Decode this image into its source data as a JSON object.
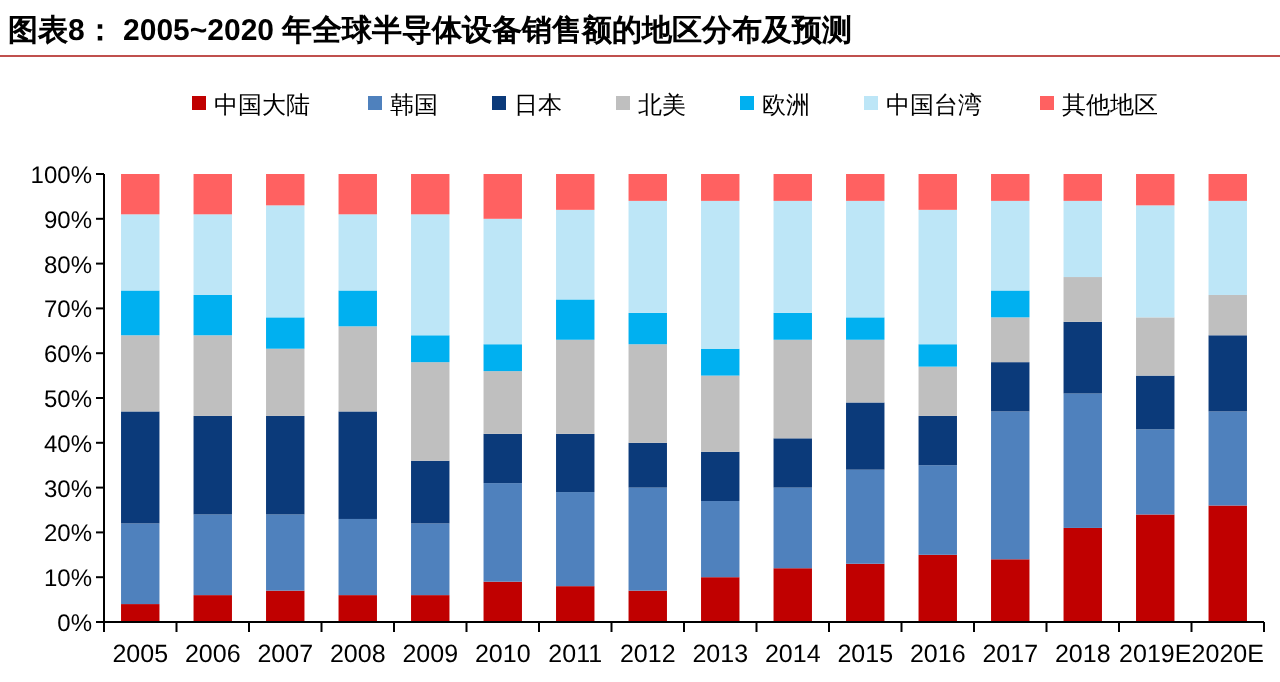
{
  "chart_data": {
    "type": "bar",
    "stacked": true,
    "title": "图表8：  2005~2020 年全球半导体设备销售额的地区分布及预测",
    "categories": [
      "2005",
      "2006",
      "2007",
      "2008",
      "2009",
      "2010",
      "2011",
      "2012",
      "2013",
      "2014",
      "2015",
      "2016",
      "2017",
      "2018",
      "2019E",
      "2020E"
    ],
    "series": [
      {
        "name": "中国大陆",
        "color": "#c00000",
        "values": [
          4,
          6,
          7,
          6,
          6,
          9,
          8,
          7,
          10,
          12,
          13,
          15,
          14,
          21,
          24,
          26
        ]
      },
      {
        "name": "韩国",
        "color": "#4f81bd",
        "values": [
          18,
          18,
          17,
          17,
          16,
          22,
          21,
          23,
          17,
          18,
          21,
          20,
          33,
          30,
          19,
          21
        ]
      },
      {
        "name": "日本",
        "color": "#0b3a7a",
        "values": [
          25,
          22,
          22,
          24,
          14,
          11,
          13,
          10,
          11,
          11,
          15,
          11,
          11,
          16,
          12,
          17
        ]
      },
      {
        "name": "北美",
        "color": "#bfbfbf",
        "values": [
          17,
          18,
          15,
          19,
          22,
          14,
          21,
          22,
          17,
          22,
          14,
          11,
          10,
          10,
          13,
          9
        ]
      },
      {
        "name": "欧洲",
        "color": "#00b0f0",
        "values": [
          10,
          9,
          7,
          8,
          6,
          6,
          9,
          7,
          6,
          6,
          5,
          5,
          6,
          0,
          0,
          0
        ]
      },
      {
        "name": "中国台湾",
        "color": "#bde6f7",
        "values": [
          17,
          18,
          25,
          17,
          27,
          28,
          20,
          25,
          33,
          25,
          26,
          30,
          20,
          17,
          25,
          21
        ]
      },
      {
        "name": "其他地区",
        "color": "#ff6161",
        "values": [
          9,
          9,
          7,
          9,
          9,
          10,
          8,
          6,
          6,
          6,
          6,
          8,
          6,
          6,
          7,
          6
        ]
      }
    ],
    "ylim": [
      0,
      100
    ],
    "yticks": [
      {
        "value": 0,
        "label": "0%"
      },
      {
        "value": 10,
        "label": "10%"
      },
      {
        "value": 20,
        "label": "20%"
      },
      {
        "value": 30,
        "label": "30%"
      },
      {
        "value": 40,
        "label": "40%"
      },
      {
        "value": 50,
        "label": "50%"
      },
      {
        "value": 60,
        "label": "60%"
      },
      {
        "value": 70,
        "label": "70%"
      },
      {
        "value": 80,
        "label": "80%"
      },
      {
        "value": 90,
        "label": "90%"
      },
      {
        "value": 100,
        "label": "100%"
      }
    ],
    "legend": "top"
  }
}
